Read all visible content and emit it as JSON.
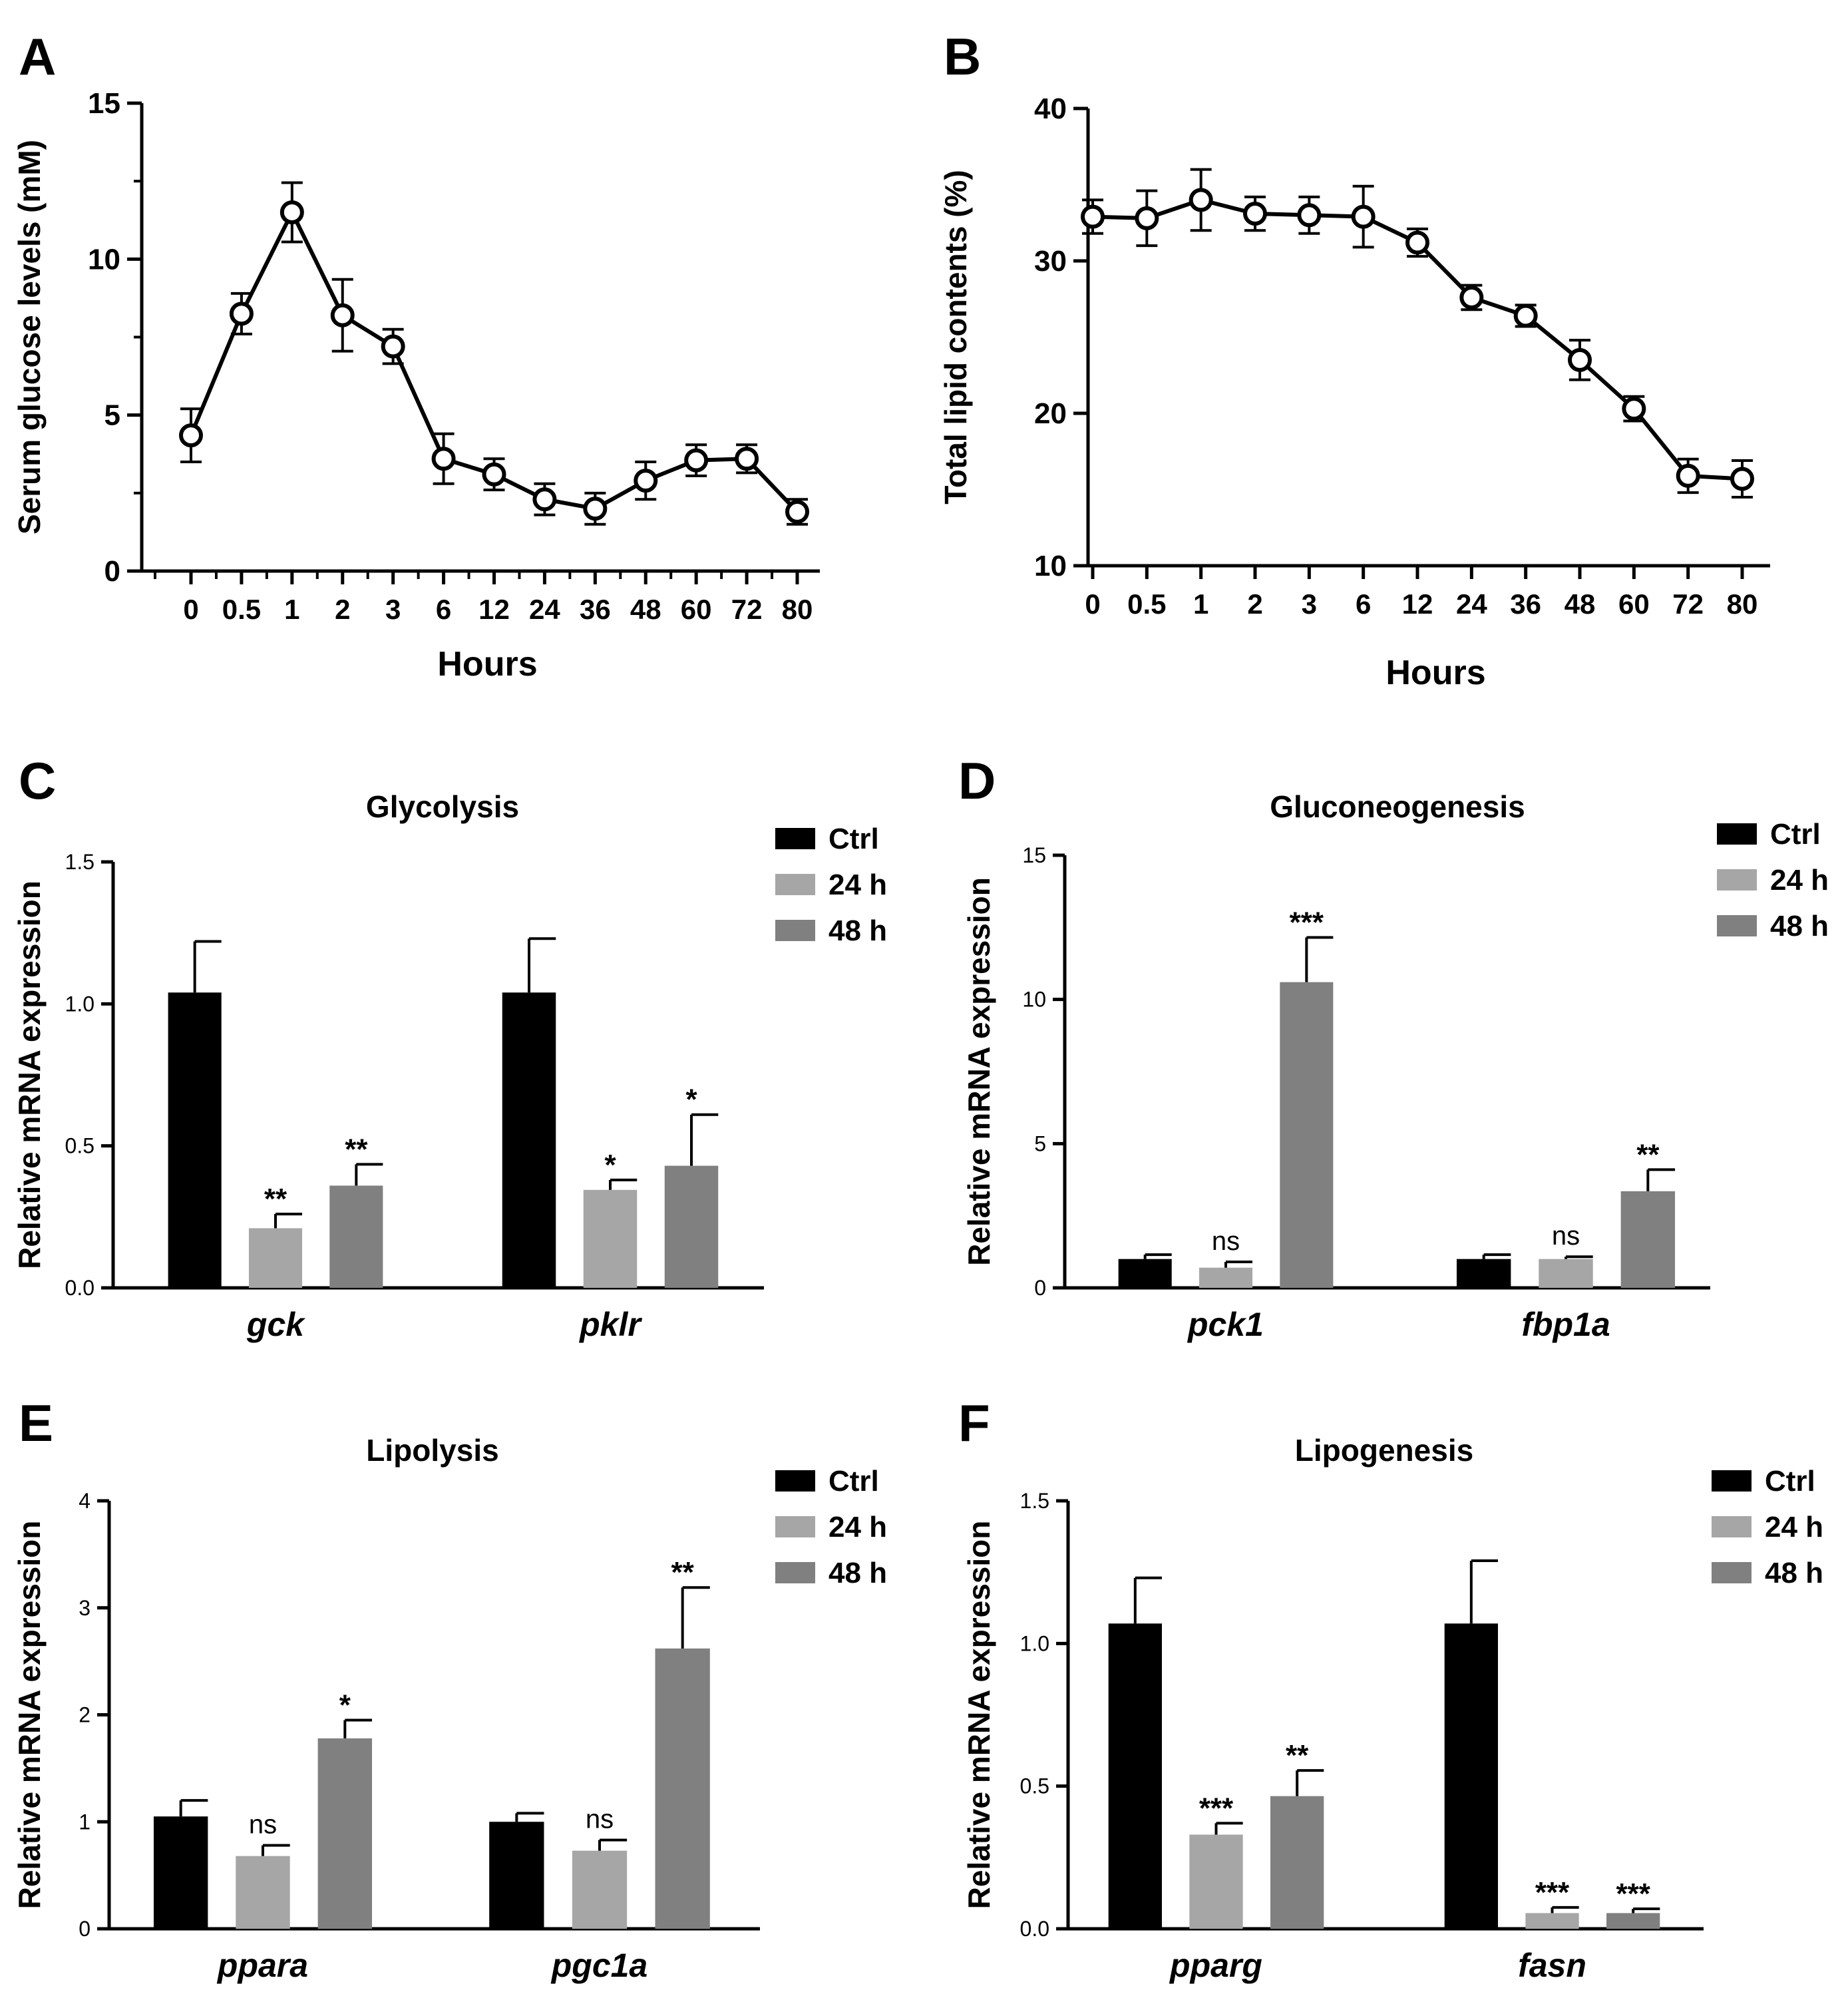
{
  "colors": {
    "ctrl": "#000000",
    "h24": "#a6a6a6",
    "h48": "#808080",
    "axis": "#000000"
  },
  "chart_data": [
    {
      "panel": "A",
      "type": "line",
      "title": "",
      "xlabel": "Hours",
      "ylabel": "Serum glucose levels (mM)",
      "categories": [
        "0",
        "0.5",
        "1",
        "2",
        "3",
        "6",
        "12",
        "24",
        "36",
        "48",
        "60",
        "72",
        "80"
      ],
      "values": [
        4.35,
        8.25,
        11.5,
        8.2,
        7.2,
        3.6,
        3.1,
        2.3,
        2.0,
        2.9,
        3.55,
        3.6,
        1.9
      ],
      "errors": [
        0.85,
        0.65,
        0.95,
        1.15,
        0.55,
        0.8,
        0.5,
        0.5,
        0.5,
        0.6,
        0.5,
        0.45,
        0.4
      ],
      "ylim": [
        0,
        15
      ],
      "yticks": [
        "0",
        "5",
        "10",
        "15"
      ]
    },
    {
      "panel": "B",
      "type": "line",
      "title": "",
      "xlabel": "Hours",
      "ylabel": "Total lipid contents (%)",
      "categories": [
        "0",
        "0.5",
        "1",
        "2",
        "3",
        "6",
        "12",
        "24",
        "36",
        "48",
        "60",
        "72",
        "80"
      ],
      "values": [
        32.9,
        32.8,
        34.0,
        33.1,
        33.0,
        32.9,
        31.2,
        27.6,
        26.4,
        23.5,
        20.3,
        15.9,
        15.7
      ],
      "errors": [
        1.1,
        1.8,
        2.0,
        1.1,
        1.2,
        2.0,
        0.9,
        0.8,
        0.7,
        1.3,
        0.8,
        1.1,
        1.2
      ],
      "ylim": [
        10,
        40
      ],
      "yticks": [
        "10",
        "20",
        "30",
        "40"
      ]
    },
    {
      "panel": "C",
      "type": "bar",
      "title": "Glycolysis",
      "ylabel": "Relative mRNA expression",
      "categories": [
        "gck",
        "pklr"
      ],
      "series": [
        {
          "name": "Ctrl",
          "values": [
            1.04,
            1.04
          ],
          "errors": [
            0.18,
            0.19
          ],
          "sig": [
            "",
            ""
          ]
        },
        {
          "name": "24 h",
          "values": [
            0.21,
            0.345
          ],
          "errors": [
            0.05,
            0.035
          ],
          "sig": [
            "**",
            "*"
          ]
        },
        {
          "name": "48 h",
          "values": [
            0.36,
            0.43
          ],
          "errors": [
            0.075,
            0.18
          ],
          "sig": [
            "**",
            "*"
          ]
        }
      ],
      "ylim": [
        0,
        1.5
      ],
      "yticks": [
        "0.0",
        "0.5",
        "1.0",
        "1.5"
      ],
      "legend": [
        "Ctrl",
        "24 h",
        "48 h"
      ]
    },
    {
      "panel": "D",
      "type": "bar",
      "title": "Gluconeogenesis",
      "ylabel": "Relative mRNA expression",
      "categories": [
        "pck1",
        "fbp1a"
      ],
      "series": [
        {
          "name": "Ctrl",
          "values": [
            1.0,
            1.0
          ],
          "errors": [
            0.15,
            0.15
          ],
          "sig": [
            "",
            ""
          ]
        },
        {
          "name": "24 h",
          "values": [
            0.7,
            1.0
          ],
          "errors": [
            0.2,
            0.08
          ],
          "sig": [
            "ns",
            "ns"
          ]
        },
        {
          "name": "48 h",
          "values": [
            10.6,
            3.35
          ],
          "errors": [
            1.55,
            0.75
          ],
          "sig": [
            "***",
            "**"
          ]
        }
      ],
      "ylim": [
        0,
        15
      ],
      "yticks": [
        "0",
        "5",
        "10",
        "15"
      ],
      "legend": [
        "Ctrl",
        "24 h",
        "48 h"
      ]
    },
    {
      "panel": "E",
      "type": "bar",
      "title": "Lipolysis",
      "ylabel": "Relative mRNA expression",
      "categories": [
        "ppara",
        "pgc1a"
      ],
      "series": [
        {
          "name": "Ctrl",
          "values": [
            1.05,
            1.0
          ],
          "errors": [
            0.15,
            0.08
          ],
          "sig": [
            "",
            ""
          ]
        },
        {
          "name": "24 h",
          "values": [
            0.68,
            0.73
          ],
          "errors": [
            0.1,
            0.1
          ],
          "sig": [
            "ns",
            "ns"
          ]
        },
        {
          "name": "48 h",
          "values": [
            1.78,
            2.62
          ],
          "errors": [
            0.17,
            0.57
          ],
          "sig": [
            "*",
            "**"
          ]
        }
      ],
      "ylim": [
        0,
        4
      ],
      "yticks": [
        "0",
        "1",
        "2",
        "3",
        "4"
      ],
      "legend": [
        "Ctrl",
        "24 h",
        "48 h"
      ]
    },
    {
      "panel": "F",
      "type": "bar",
      "title": "Lipogenesis",
      "ylabel": "Relative mRNA expression",
      "categories": [
        "pparg",
        "fasn"
      ],
      "series": [
        {
          "name": "Ctrl",
          "values": [
            1.07,
            1.07
          ],
          "errors": [
            0.16,
            0.22
          ],
          "sig": [
            "",
            ""
          ]
        },
        {
          "name": "24 h",
          "values": [
            0.33,
            0.055
          ],
          "errors": [
            0.04,
            0.02
          ],
          "sig": [
            "***",
            "***"
          ]
        },
        {
          "name": "48 h",
          "values": [
            0.465,
            0.055
          ],
          "errors": [
            0.09,
            0.015
          ],
          "sig": [
            "**",
            "***"
          ]
        }
      ],
      "ylim": [
        0,
        1.5
      ],
      "yticks": [
        "0.0",
        "0.5",
        "1.0",
        "1.5"
      ],
      "legend": [
        "Ctrl",
        "24 h",
        "48 h"
      ]
    }
  ]
}
